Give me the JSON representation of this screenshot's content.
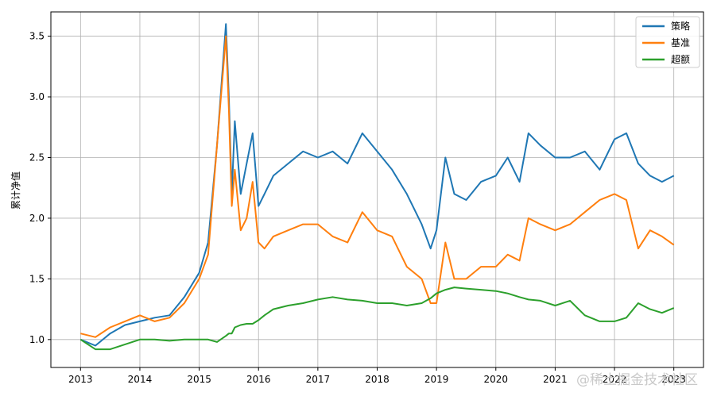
{
  "chart_data": {
    "type": "line",
    "title": "",
    "xlabel": "",
    "ylabel": "累计净值",
    "x_ticks": [
      "2013",
      "2014",
      "2015",
      "2016",
      "2017",
      "2018",
      "2019",
      "2020",
      "2021",
      "2022",
      "2023"
    ],
    "y_ticks": [
      "1.0",
      "1.5",
      "2.0",
      "2.5",
      "3.0",
      "3.5"
    ],
    "xlim": [
      2012.5,
      2023.5
    ],
    "ylim": [
      0.77,
      3.7
    ],
    "grid": true,
    "legend": "top-right",
    "x": [
      2013.0,
      2013.25,
      2013.5,
      2013.75,
      2014.0,
      2014.25,
      2014.5,
      2014.75,
      2015.0,
      2015.15,
      2015.3,
      2015.45,
      2015.5,
      2015.55,
      2015.6,
      2015.7,
      2015.8,
      2015.9,
      2016.0,
      2016.1,
      2016.25,
      2016.5,
      2016.75,
      2017.0,
      2017.25,
      2017.5,
      2017.75,
      2018.0,
      2018.25,
      2018.5,
      2018.75,
      2018.9,
      2019.0,
      2019.15,
      2019.3,
      2019.5,
      2019.75,
      2020.0,
      2020.2,
      2020.4,
      2020.55,
      2020.75,
      2021.0,
      2021.25,
      2021.5,
      2021.75,
      2022.0,
      2022.2,
      2022.4,
      2022.6,
      2022.8,
      2023.0
    ],
    "series": [
      {
        "name": "策略",
        "color": "#1f77b4",
        "values": [
          1.0,
          0.95,
          1.05,
          1.12,
          1.15,
          1.18,
          1.2,
          1.35,
          1.55,
          1.8,
          2.6,
          3.6,
          3.0,
          2.2,
          2.8,
          2.2,
          2.45,
          2.7,
          2.1,
          2.2,
          2.35,
          2.45,
          2.55,
          2.5,
          2.55,
          2.45,
          2.7,
          2.55,
          2.4,
          2.2,
          1.95,
          1.75,
          1.9,
          2.5,
          2.2,
          2.15,
          2.3,
          2.35,
          2.5,
          2.3,
          2.7,
          2.6,
          2.5,
          2.5,
          2.55,
          2.4,
          2.65,
          2.7,
          2.45,
          2.35,
          2.3,
          2.35
        ]
      },
      {
        "name": "基准",
        "color": "#ff7f0e",
        "values": [
          1.05,
          1.02,
          1.1,
          1.15,
          1.2,
          1.15,
          1.18,
          1.3,
          1.5,
          1.7,
          2.6,
          3.5,
          2.9,
          2.1,
          2.4,
          1.9,
          2.0,
          2.3,
          1.8,
          1.75,
          1.85,
          1.9,
          1.95,
          1.95,
          1.85,
          1.8,
          2.05,
          1.9,
          1.85,
          1.6,
          1.5,
          1.3,
          1.3,
          1.8,
          1.5,
          1.5,
          1.6,
          1.6,
          1.7,
          1.65,
          2.0,
          1.95,
          1.9,
          1.95,
          2.05,
          2.15,
          2.2,
          2.15,
          1.75,
          1.9,
          1.85,
          1.78
        ]
      },
      {
        "name": "超额",
        "color": "#2ca02c",
        "values": [
          1.0,
          0.92,
          0.92,
          0.96,
          1.0,
          1.0,
          0.99,
          1.0,
          1.0,
          1.0,
          0.98,
          1.03,
          1.05,
          1.05,
          1.1,
          1.12,
          1.13,
          1.13,
          1.16,
          1.2,
          1.25,
          1.28,
          1.3,
          1.33,
          1.35,
          1.33,
          1.32,
          1.3,
          1.3,
          1.28,
          1.3,
          1.34,
          1.38,
          1.41,
          1.43,
          1.42,
          1.41,
          1.4,
          1.38,
          1.35,
          1.33,
          1.32,
          1.28,
          1.32,
          1.2,
          1.15,
          1.15,
          1.18,
          1.3,
          1.25,
          1.22,
          1.26
        ]
      }
    ]
  },
  "watermark": "@稀土掘金技术社区"
}
